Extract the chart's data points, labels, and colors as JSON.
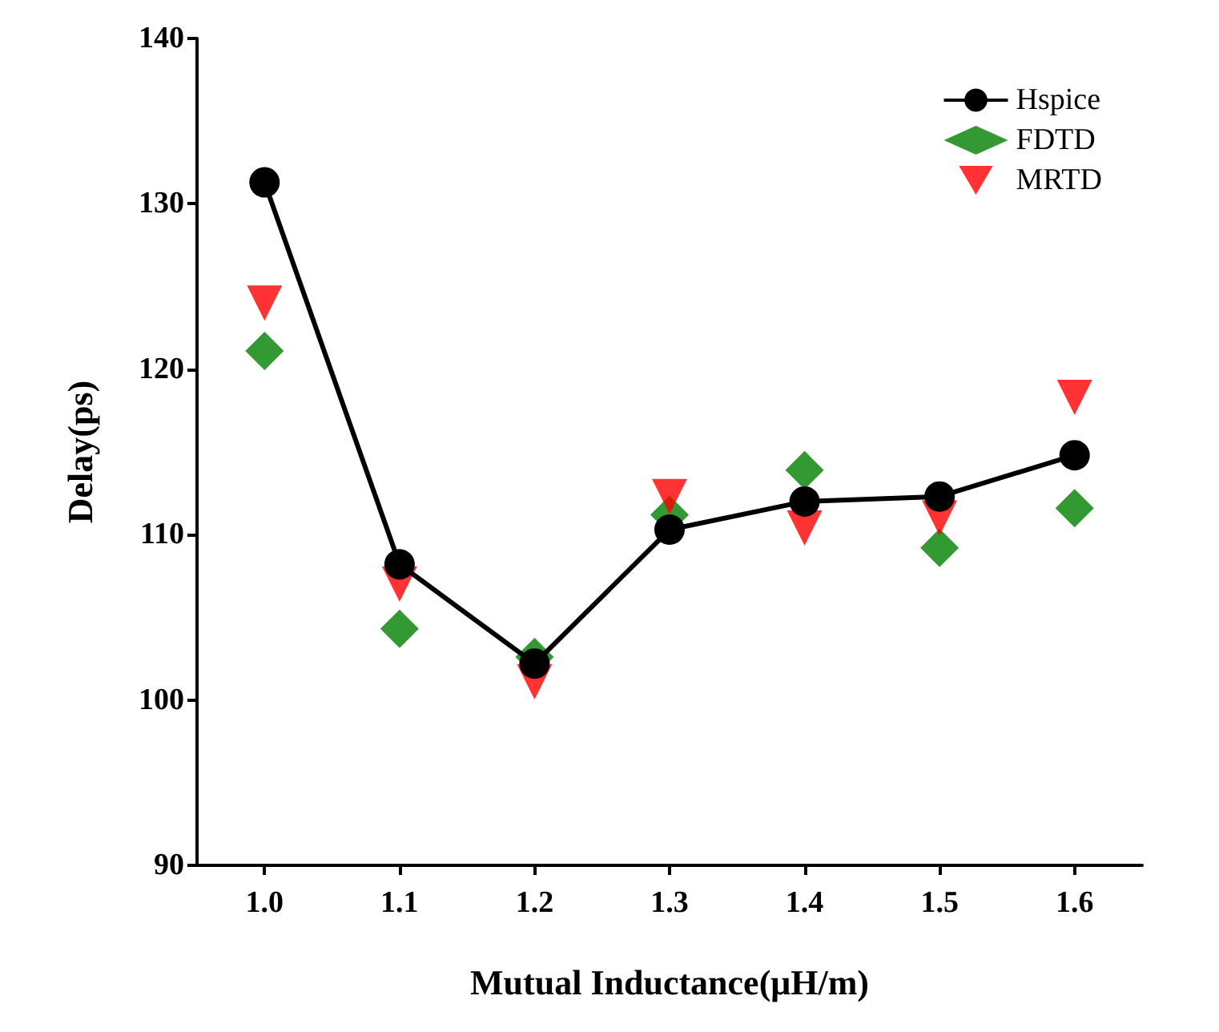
{
  "chart_data": {
    "type": "line",
    "xlabel": "Mutual Inductance(μH/m)",
    "ylabel": "Delay(ps)",
    "categories": [
      "1.0",
      "1.1",
      "1.2",
      "1.3",
      "1.4",
      "1.5",
      "1.6"
    ],
    "series": [
      {
        "name": "Hspice",
        "marker": "circle",
        "color": "#000000",
        "values": [
          131.3,
          108.2,
          102.2,
          110.3,
          112.0,
          112.3,
          114.8
        ]
      },
      {
        "name": "FDTD",
        "type": "scatter",
        "marker": "diamond",
        "color": "#008000",
        "values": [
          121.1,
          104.3,
          102.6,
          111.2,
          113.9,
          109.2,
          111.6
        ]
      },
      {
        "name": "MRTD",
        "type": "scatter",
        "marker": "triangle",
        "color": "#ff0000",
        "values": [
          124.0,
          107.0,
          101.1,
          112.3,
          110.4,
          111.0,
          118.3
        ]
      }
    ],
    "ylim": [
      90,
      140
    ],
    "yticks": [
      90,
      100,
      110,
      120,
      130,
      140
    ],
    "grid": false,
    "legend": "top right",
    "line_style": "solid"
  }
}
